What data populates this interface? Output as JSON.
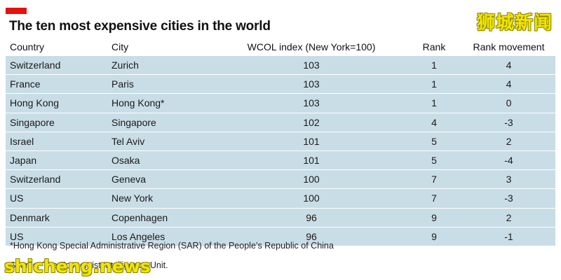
{
  "header": {
    "title": "The ten most expensive cities in the world"
  },
  "watermarks": {
    "top": "狮城新闻",
    "bottom": "shicheng.news"
  },
  "table": {
    "columns": [
      "Country",
      "City",
      "WCOL index (New York=100)",
      "Rank",
      "Rank movement"
    ],
    "rows": [
      {
        "country": "Switzerland",
        "city": "Zurich",
        "index": "103",
        "rank": "1",
        "movement": "4"
      },
      {
        "country": "France",
        "city": "Paris",
        "index": "103",
        "rank": "1",
        "movement": "4"
      },
      {
        "country": "Hong Kong",
        "city": "Hong Kong*",
        "index": "103",
        "rank": "1",
        "movement": "0"
      },
      {
        "country": "Singapore",
        "city": "Singapore",
        "index": "102",
        "rank": "4",
        "movement": "-3"
      },
      {
        "country": "Israel",
        "city": "Tel Aviv",
        "index": "101",
        "rank": "5",
        "movement": "2"
      },
      {
        "country": "Japan",
        "city": "Osaka",
        "index": "101",
        "rank": "5",
        "movement": "-4"
      },
      {
        "country": "Switzerland",
        "city": "Geneva",
        "index": "100",
        "rank": "7",
        "movement": "3"
      },
      {
        "country": "US",
        "city": "New York",
        "index": "100",
        "rank": "7",
        "movement": "-3"
      },
      {
        "country": "Denmark",
        "city": "Copenhagen",
        "index": "96",
        "rank": "9",
        "movement": "2"
      },
      {
        "country": "US",
        "city": "Los Angeles",
        "index": "96",
        "rank": "9",
        "movement": "-1"
      }
    ]
  },
  "footer": {
    "footnote": "*Hong Kong Special Administrative Region (SAR) of the People’s Republic of China",
    "source": "Source: The Economist Intelligence Unit."
  },
  "colors": {
    "accent": "#e3120b",
    "row_background": "#c9dde6",
    "watermark": "#f2e600"
  }
}
